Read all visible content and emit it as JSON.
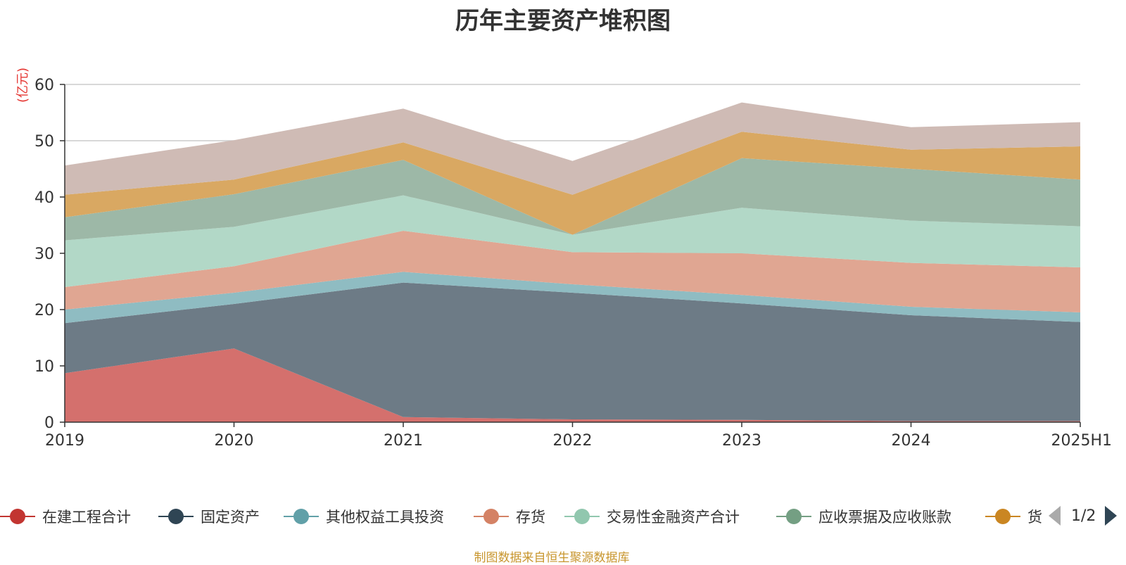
{
  "title": "历年主要资产堆积图",
  "unit_label": "(亿元)",
  "source": "制图数据来自恒生聚源数据库",
  "pager": {
    "text": "1/2"
  },
  "legend": [
    {
      "name": "在建工程合计",
      "color": "#c23531"
    },
    {
      "name": "固定资产",
      "color": "#2f4554"
    },
    {
      "name": "其他权益工具投资",
      "color": "#61a0a8"
    },
    {
      "name": "存货",
      "color": "#d48265"
    },
    {
      "name": "交易性金融资产合计",
      "color": "#91c7ae"
    },
    {
      "name": "应收票据及应收账款",
      "color": "#749f83"
    },
    {
      "name": "货",
      "color": "#ca8622"
    }
  ],
  "chart_data": {
    "type": "area",
    "stacked": true,
    "title": "历年主要资产堆积图",
    "ylabel": "(亿元)",
    "ylim": [
      0,
      60
    ],
    "yticks": [
      0,
      10,
      20,
      30,
      40,
      50,
      60
    ],
    "grid": true,
    "legend_position": "bottom",
    "categories": [
      "2019",
      "2020",
      "2021",
      "2022",
      "2023",
      "2024",
      "2025H1"
    ],
    "series": [
      {
        "name": "在建工程合计",
        "color": "#d4706d",
        "values": [
          8.7,
          13.1,
          0.9,
          0.5,
          0.4,
          0.2,
          0.2
        ]
      },
      {
        "name": "固定资产",
        "color": "#6d7b86",
        "values": [
          8.9,
          7.9,
          23.9,
          22.5,
          20.7,
          18.8,
          17.6
        ]
      },
      {
        "name": "其他权益工具投资",
        "color": "#8fbcc2",
        "values": [
          2.4,
          2.0,
          1.9,
          1.5,
          1.5,
          1.5,
          1.7
        ]
      },
      {
        "name": "存货",
        "color": "#e0a692",
        "values": [
          4.0,
          4.7,
          7.3,
          5.7,
          7.4,
          7.8,
          8.0
        ]
      },
      {
        "name": "交易性金融资产合计",
        "color": "#b2d8c7",
        "values": [
          8.3,
          7.0,
          6.3,
          3.1,
          8.1,
          7.5,
          7.3
        ]
      },
      {
        "name": "应收票据及应收账款",
        "color": "#9db8a7",
        "values": [
          4.1,
          5.8,
          6.3,
          0.0,
          8.8,
          9.2,
          8.3
        ]
      },
      {
        "name": "货",
        "color": "#d9a862",
        "values": [
          4.0,
          2.6,
          3.1,
          7.1,
          4.7,
          3.4,
          5.9
        ]
      },
      {
        "values": [
          5.2,
          7.0,
          6.0,
          6.0,
          5.2,
          4.0,
          4.3
        ],
        "color": "#cfbbb5"
      }
    ]
  }
}
